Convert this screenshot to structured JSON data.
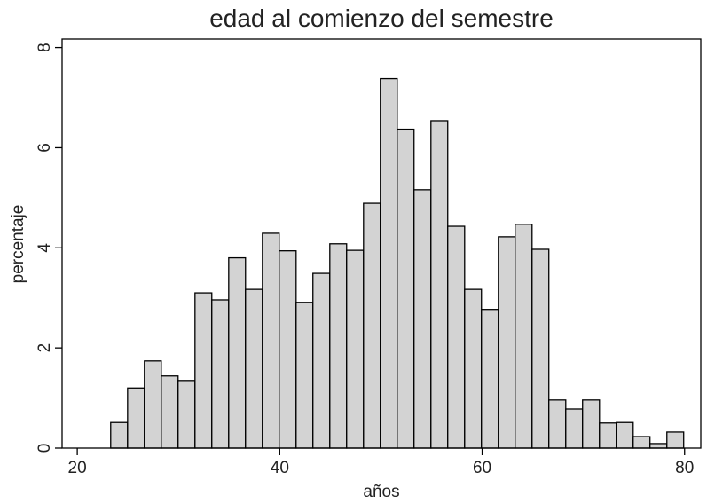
{
  "chart_data": {
    "type": "histogram",
    "title": "edad al comienzo del semestre",
    "x_label": "años",
    "y_label": "percentaje",
    "bins": [
      23.3,
      24.97,
      26.63,
      28.3,
      29.96,
      31.63,
      33.29,
      34.96,
      36.62,
      38.29,
      39.95,
      41.62,
      43.28,
      44.95,
      46.61,
      48.28,
      49.94,
      51.61,
      53.27,
      54.94,
      56.6,
      58.27,
      59.93,
      61.6,
      63.26,
      64.93,
      66.59,
      68.26,
      69.92,
      71.59,
      73.25,
      74.92,
      76.58,
      78.25,
      79.91
    ],
    "values": [
      0.51,
      1.2,
      1.74,
      1.44,
      1.35,
      3.1,
      2.96,
      3.8,
      3.17,
      4.29,
      3.94,
      2.91,
      3.49,
      4.08,
      3.95,
      4.89,
      7.38,
      6.37,
      5.16,
      6.54,
      4.43,
      3.17,
      2.77,
      4.22,
      4.47,
      3.97,
      0.96,
      0.78,
      0.96,
      0.5,
      0.51,
      0.23,
      0.09,
      0.32
    ],
    "color": "#d3d3d3",
    "xlim": [
      18.5,
      81.6
    ],
    "xticks": [
      20,
      40,
      60,
      80
    ],
    "ylim": [
      0,
      8.17
    ],
    "yticks": [
      0,
      2,
      4,
      6,
      8
    ]
  }
}
